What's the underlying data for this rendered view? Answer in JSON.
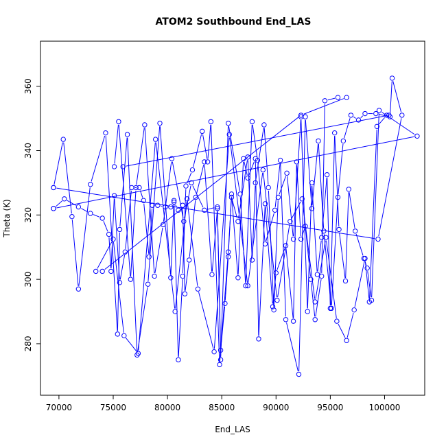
{
  "chart_data": {
    "type": "line",
    "title": "ATOM2 Southbound End_LAS",
    "xlabel": "End_LAS",
    "ylabel": "Theta (K)",
    "xlim": [
      68300,
      103700
    ],
    "ylim": [
      264,
      374
    ],
    "xticks": [
      70000,
      75000,
      80000,
      85000,
      90000,
      95000,
      100000
    ],
    "yticks": [
      280,
      300,
      320,
      340,
      360
    ],
    "color": "#0000ff",
    "grid": false,
    "series": [
      {
        "points": [
          [
            69500,
            322
          ],
          [
            70500,
            325
          ],
          [
            71800,
            322.5
          ],
          [
            72900,
            320.5
          ],
          [
            74000,
            319
          ],
          [
            74600,
            314
          ],
          [
            74800,
            302.5
          ],
          [
            75100,
            326
          ],
          [
            75600,
            299
          ],
          [
            76100,
            308.5
          ],
          [
            76700,
            328.5
          ],
          [
            77400,
            328.5
          ],
          [
            77800,
            324.5
          ],
          [
            78300,
            307
          ],
          [
            78600,
            323
          ],
          [
            79100,
            323
          ],
          [
            79800,
            322.5
          ],
          [
            80300,
            322.5
          ],
          [
            80600,
            324
          ],
          [
            81000,
            321.5
          ],
          [
            81400,
            323
          ],
          [
            81600,
            295.5
          ],
          [
            82000,
            306
          ],
          [
            82600,
            325.5
          ],
          [
            83400,
            336.5
          ],
          [
            84100,
            301.5
          ],
          [
            84600,
            322
          ],
          [
            84900,
            278
          ],
          [
            85300,
            292.5
          ],
          [
            85600,
            307
          ],
          [
            85900,
            326.5
          ],
          [
            86500,
            300.5
          ],
          [
            87000,
            337.5
          ],
          [
            87400,
            331.5
          ],
          [
            88100,
            337.5
          ],
          [
            88400,
            281.5
          ],
          [
            89000,
            323.5
          ],
          [
            89700,
            291.5
          ],
          [
            90000,
            302
          ],
          [
            90900,
            310.5
          ],
          [
            91600,
            287
          ],
          [
            91900,
            336.5
          ],
          [
            92300,
            312.5
          ],
          [
            92700,
            316.5
          ],
          [
            93200,
            300
          ],
          [
            93600,
            287.5
          ],
          [
            94200,
            301
          ],
          [
            94500,
            355.5
          ],
          [
            95700,
            356.5
          ]
        ]
      },
      {
        "points": [
          [
            69500,
            328.5
          ],
          [
            70400,
            343.5
          ],
          [
            71200,
            319.5
          ],
          [
            71800,
            297
          ],
          [
            72900,
            329.5
          ],
          [
            74300,
            345.5
          ],
          [
            75400,
            283
          ],
          [
            75600,
            315.5
          ],
          [
            76300,
            345
          ],
          [
            77200,
            276.5
          ],
          [
            78200,
            298.5
          ],
          [
            79300,
            348.5
          ],
          [
            80300,
            300.5
          ],
          [
            80600,
            324.5
          ],
          [
            81000,
            275
          ],
          [
            81400,
            301
          ],
          [
            81700,
            329
          ],
          [
            82300,
            334
          ],
          [
            83200,
            346
          ],
          [
            83700,
            336.5
          ],
          [
            84000,
            349
          ],
          [
            84800,
            273.5
          ],
          [
            85600,
            308.5
          ],
          [
            85900,
            325.5
          ],
          [
            86500,
            318
          ],
          [
            87400,
            338
          ],
          [
            87800,
            306
          ],
          [
            88100,
            330
          ],
          [
            88900,
            348
          ],
          [
            89300,
            328.5
          ],
          [
            89800,
            290.5
          ],
          [
            90200,
            325.5
          ],
          [
            91000,
            333
          ],
          [
            91600,
            312.5
          ],
          [
            92300,
            350.5
          ],
          [
            92900,
            290
          ],
          [
            93300,
            330
          ],
          [
            93800,
            301.5
          ],
          [
            94200,
            313
          ],
          [
            94700,
            332.5
          ],
          [
            95000,
            291
          ],
          [
            95400,
            345.5
          ],
          [
            95800,
            315.5
          ],
          [
            96400,
            299.5
          ],
          [
            96700,
            328
          ],
          [
            97300,
            315
          ],
          [
            98100,
            306.5
          ],
          [
            98400,
            303.5
          ],
          [
            98800,
            293.5
          ],
          [
            99500,
            352.5
          ],
          [
            103000,
            344.5
          ],
          [
            69500,
            322
          ]
        ]
      },
      {
        "points": [
          [
            75100,
            335
          ],
          [
            75500,
            349
          ],
          [
            76600,
            300
          ],
          [
            77100,
            328.5
          ],
          [
            77900,
            348
          ],
          [
            78800,
            301
          ],
          [
            79600,
            317
          ],
          [
            80400,
            337.5
          ],
          [
            81500,
            318
          ],
          [
            82200,
            330
          ],
          [
            83400,
            321.5
          ],
          [
            84600,
            322.5
          ],
          [
            84900,
            275
          ],
          [
            85600,
            348.5
          ],
          [
            86700,
            326.5
          ],
          [
            87200,
            298
          ],
          [
            87800,
            349
          ],
          [
            88300,
            337
          ],
          [
            89000,
            311
          ],
          [
            89900,
            321.5
          ],
          [
            90400,
            337
          ],
          [
            90900,
            287.5
          ],
          [
            92100,
            270.5
          ],
          [
            92700,
            350.5
          ],
          [
            93300,
            322
          ],
          [
            93900,
            343
          ],
          [
            94400,
            315
          ],
          [
            95100,
            291
          ],
          [
            95700,
            325.5
          ],
          [
            96200,
            343
          ],
          [
            96900,
            351
          ],
          [
            97600,
            349.5
          ],
          [
            98200,
            351.5
          ],
          [
            99200,
            351.5
          ],
          [
            100500,
            350.5
          ],
          [
            100700,
            362.5
          ],
          [
            101600,
            351
          ],
          [
            99400,
            312.5
          ],
          [
            69500,
            328.5
          ]
        ]
      },
      {
        "points": [
          [
            74000,
            302.5
          ],
          [
            92300,
            351
          ],
          [
            96500,
            356.5
          ]
        ]
      },
      {
        "points": [
          [
            75900,
            335
          ],
          [
            100400,
            351
          ]
        ]
      },
      {
        "points": [
          [
            73400,
            302.5
          ],
          [
            75000,
            312.5
          ],
          [
            76000,
            282.5
          ],
          [
            77300,
            277
          ],
          [
            78900,
            343.5
          ],
          [
            80700,
            290
          ],
          [
            81800,
            325
          ],
          [
            82800,
            297
          ],
          [
            84300,
            277.5
          ],
          [
            85700,
            345
          ],
          [
            87400,
            298
          ],
          [
            88800,
            334
          ],
          [
            90100,
            293.5
          ],
          [
            91300,
            318
          ],
          [
            92400,
            325
          ],
          [
            93600,
            293
          ],
          [
            94600,
            313
          ],
          [
            95600,
            287
          ],
          [
            96500,
            281
          ],
          [
            97200,
            290.5
          ],
          [
            98200,
            306.5
          ],
          [
            98600,
            293
          ],
          [
            99300,
            347.5
          ],
          [
            100200,
            351
          ]
        ]
      }
    ]
  }
}
